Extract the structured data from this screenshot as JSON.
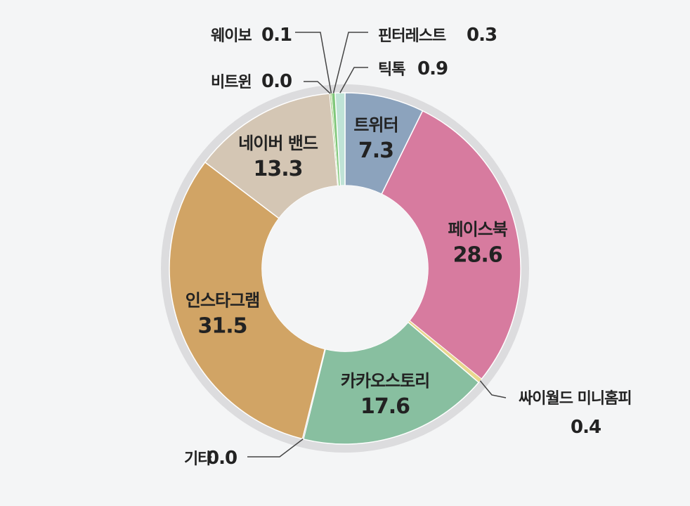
{
  "chart_data": {
    "type": "pie",
    "donut": true,
    "unit": "",
    "slices": [
      {
        "name": "트위터",
        "value": 7.3,
        "value_label": "7.3",
        "color": "#8ca3bd"
      },
      {
        "name": "페이스북",
        "value": 28.6,
        "value_label": "28.6",
        "color": "#d77b9f"
      },
      {
        "name": "싸이월드 미니홈피",
        "value": 0.4,
        "value_label": "0.4",
        "color": "#e9d78e"
      },
      {
        "name": "카카오스토리",
        "value": 17.6,
        "value_label": "17.6",
        "color": "#88bfa0"
      },
      {
        "name": "기타",
        "value": 0.0,
        "value_label": "0.0",
        "color": "#bfbfbf"
      },
      {
        "name": "인스타그램",
        "value": 31.5,
        "value_label": "31.5",
        "color": "#d1a465"
      },
      {
        "name": "네이버 밴드",
        "value": 13.3,
        "value_label": "13.3",
        "color": "#d4c6b4"
      },
      {
        "name": "비트윈",
        "value": 0.0,
        "value_label": "0.0",
        "color": "#a8c98a"
      },
      {
        "name": "웨이보",
        "value": 0.1,
        "value_label": "0.1",
        "color": "#9fcf7e"
      },
      {
        "name": "핀터레스트",
        "value": 0.3,
        "value_label": "0.3",
        "color": "#7fc77a"
      },
      {
        "name": "틱톡",
        "value": 0.9,
        "value_label": "0.9",
        "color": "#bfe3d6"
      }
    ]
  },
  "colors": {
    "background": "#f4f5f6",
    "outer_ring": "#dcdcde",
    "center_hole": "#f4f5f6"
  }
}
